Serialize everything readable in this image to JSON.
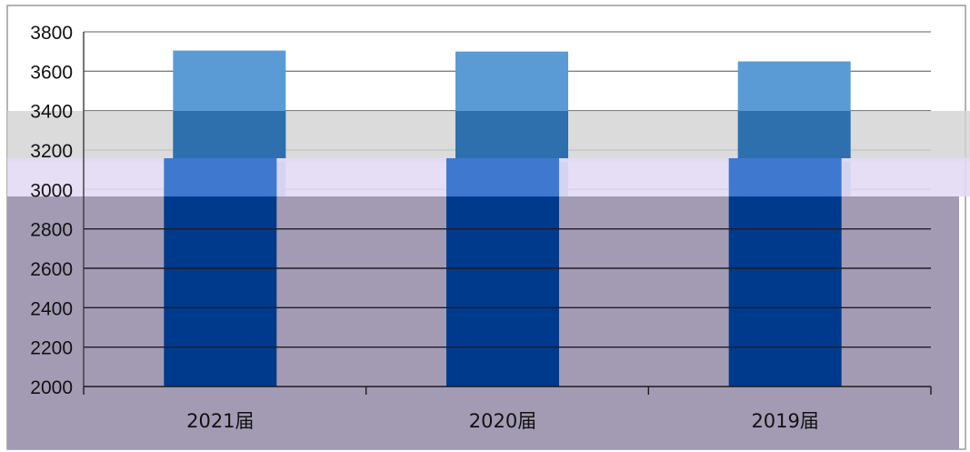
{
  "chart_data": {
    "type": "bar",
    "categories": [
      "2021届",
      "2020届",
      "2019届"
    ],
    "values": [
      3705,
      3700,
      3650
    ],
    "ylim": [
      2000,
      3800
    ],
    "yticks": [
      2000,
      2200,
      2400,
      2600,
      2800,
      3000,
      3200,
      3400,
      3600,
      3800
    ],
    "grid": true,
    "title": "",
    "xlabel": "",
    "ylabel": ""
  },
  "colors": {
    "bar": "#5b9bd5",
    "bar_shadow": "#003a8c",
    "overlay_gray": "#d3d3d3",
    "overlay_lavender": "#e2daf3",
    "overlay_purple": "#a39bb4",
    "grid": "#808080"
  }
}
